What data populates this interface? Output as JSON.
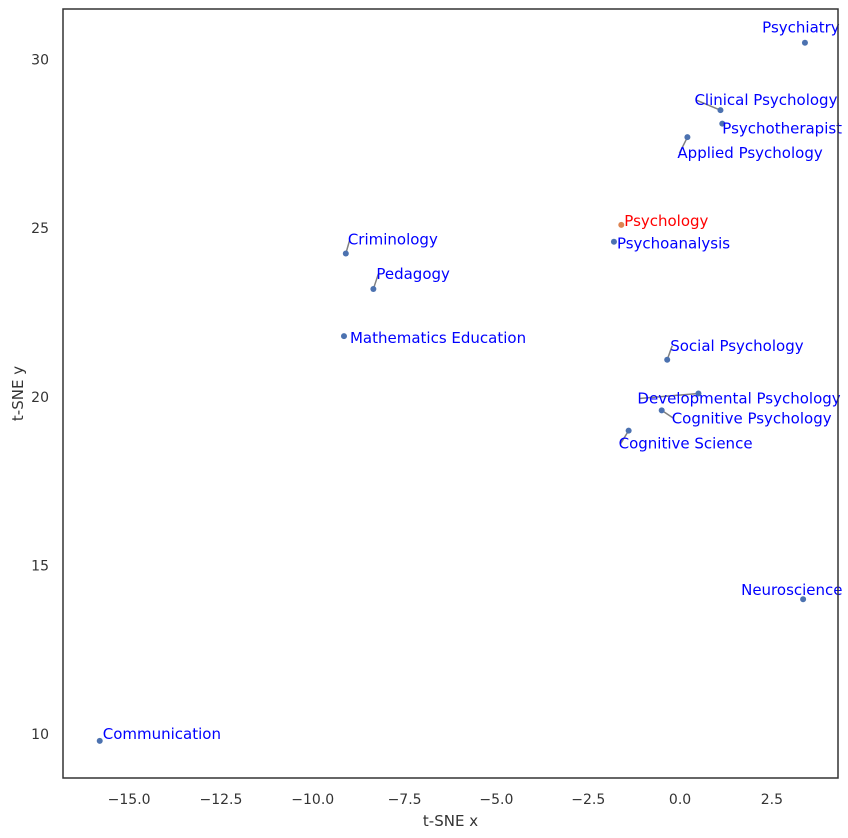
{
  "chart_data": {
    "type": "scatter",
    "title": "",
    "xlabel": "t-SNE x",
    "ylabel": "t-SNE y",
    "xlim": [
      -16.8,
      4.3
    ],
    "ylim": [
      8.7,
      31.5
    ],
    "xticks": [
      -15.0,
      -12.5,
      -10.0,
      -7.5,
      -5.0,
      -2.5,
      0.0,
      2.5
    ],
    "xtick_labels": [
      "−15.0",
      "−12.5",
      "−10.0",
      "−7.5",
      "−5.0",
      "−2.5",
      "0.0",
      "2.5"
    ],
    "yticks": [
      10,
      15,
      20,
      25,
      30
    ],
    "ytick_labels": [
      "10",
      "15",
      "20",
      "25",
      "30"
    ],
    "grid": false,
    "colors": {
      "point": "#4c72b0",
      "highlight_point": "#dd8452",
      "label": "#0000ff",
      "highlight_label": "#ff0000",
      "leader": "#808080"
    },
    "points": [
      {
        "label": "Psychiatry",
        "x": 3.4,
        "y": 30.5,
        "highlight": false
      },
      {
        "label": "Clinical Psychology",
        "x": 1.1,
        "y": 28.5,
        "highlight": false
      },
      {
        "label": "Psychotherapist",
        "x": 1.15,
        "y": 28.1,
        "highlight": false
      },
      {
        "label": "Applied Psychology",
        "x": 0.2,
        "y": 27.7,
        "highlight": false
      },
      {
        "label": "Psychology",
        "x": -1.6,
        "y": 25.1,
        "highlight": true
      },
      {
        "label": "Psychoanalysis",
        "x": -1.8,
        "y": 24.6,
        "highlight": false
      },
      {
        "label": "Criminology",
        "x": -9.1,
        "y": 24.25,
        "highlight": false
      },
      {
        "label": "Pedagogy",
        "x": -8.35,
        "y": 23.2,
        "highlight": false
      },
      {
        "label": "Mathematics Education",
        "x": -9.15,
        "y": 21.8,
        "highlight": false
      },
      {
        "label": "Social Psychology",
        "x": -0.35,
        "y": 21.1,
        "highlight": false
      },
      {
        "label": "Developmental Psychology",
        "x": 0.5,
        "y": 20.1,
        "highlight": false
      },
      {
        "label": "Cognitive Psychology",
        "x": -0.5,
        "y": 19.6,
        "highlight": false
      },
      {
        "label": "Cognitive Science",
        "x": -1.4,
        "y": 19.0,
        "highlight": false
      },
      {
        "label": "Neuroscience",
        "x": 3.35,
        "y": 14.0,
        "highlight": false
      },
      {
        "label": "Communication",
        "x": -15.8,
        "y": 9.8,
        "highlight": false
      }
    ]
  }
}
